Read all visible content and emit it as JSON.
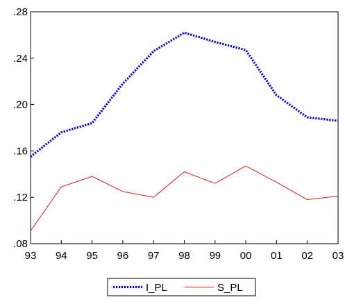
{
  "chart_data": {
    "type": "line",
    "categories": [
      "93",
      "94",
      "95",
      "96",
      "97",
      "98",
      "99",
      "00",
      "01",
      "02",
      "03"
    ],
    "ylim": [
      0.08,
      0.28
    ],
    "yticks": [
      0.08,
      0.12,
      0.16,
      0.2,
      0.24,
      0.28
    ],
    "ytick_labels": [
      ".08",
      ".12",
      ".16",
      ".20",
      ".24",
      ".28"
    ],
    "grid": false,
    "legend_position": "bottom-center",
    "series": [
      {
        "name": "I_PL",
        "color": "#0000d8",
        "style": "dotted",
        "values": [
          0.155,
          0.176,
          0.184,
          0.218,
          0.246,
          0.262,
          0.254,
          0.247,
          0.208,
          0.189,
          0.186
        ]
      },
      {
        "name": "S_PL",
        "color": "#e8151b",
        "style": "solid",
        "values": [
          0.091,
          0.129,
          0.138,
          0.125,
          0.12,
          0.142,
          0.132,
          0.147,
          0.133,
          0.118,
          0.121
        ]
      }
    ]
  }
}
